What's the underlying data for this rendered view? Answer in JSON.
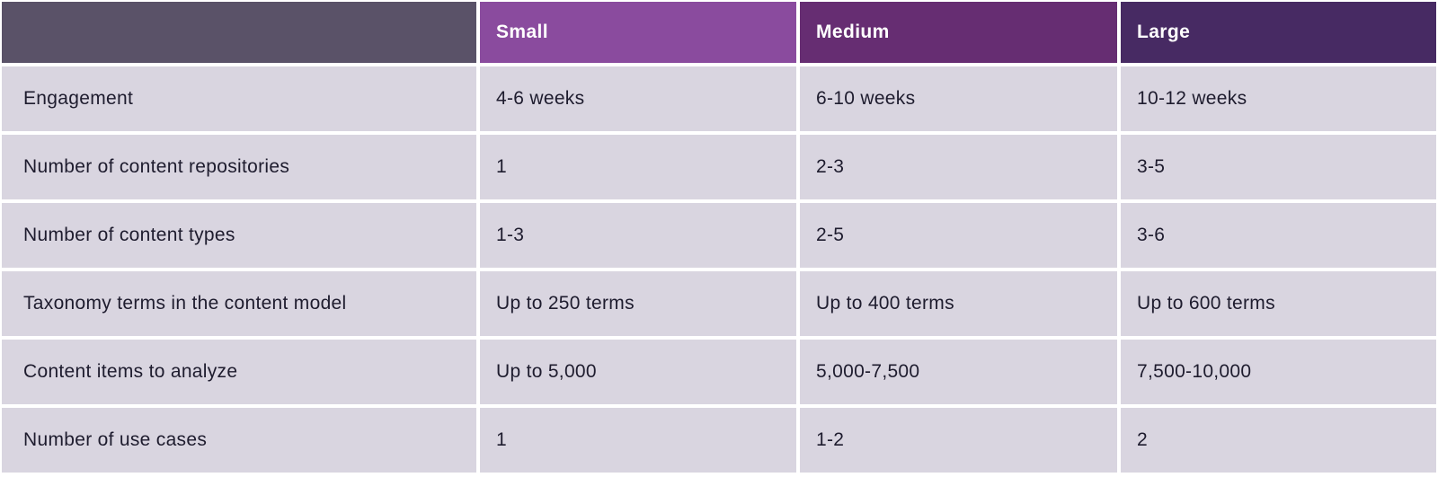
{
  "table": {
    "header": {
      "corner_label": "",
      "columns": [
        {
          "key": "small",
          "label": "Small",
          "color": "#8a4b9e"
        },
        {
          "key": "medium",
          "label": "Medium",
          "color": "#662d72"
        },
        {
          "key": "large",
          "label": "Large",
          "color": "#472a63"
        }
      ],
      "corner_color": "#5a5268",
      "header_text_color": "#ffffff"
    },
    "rows": [
      {
        "label": "Engagement",
        "small": "4-6 weeks",
        "medium": "6-10 weeks",
        "large": "10-12 weeks"
      },
      {
        "label": "Number of content repositories",
        "small": "1",
        "medium": "2-3",
        "large": "3-5"
      },
      {
        "label": "Number of content types",
        "small": "1-3",
        "medium": "2-5",
        "large": "3-6"
      },
      {
        "label": "Taxonomy terms in the content model",
        "small": "Up to 250 terms",
        "medium": "Up to 400 terms",
        "large": "Up to 600 terms"
      },
      {
        "label": "Content items to analyze",
        "small": "Up to 5,000",
        "medium": "5,000-7,500",
        "large": "7,500-10,000"
      },
      {
        "label": "Number of use cases",
        "small": "1",
        "medium": "1-2",
        "large": "2"
      }
    ],
    "colors": {
      "row_background": "#d9d5e0",
      "body_text": "#1e1c2e",
      "gap": "#ffffff"
    }
  },
  "chart_data": {
    "type": "table",
    "title": "",
    "columns": [
      "",
      "Small",
      "Medium",
      "Large"
    ],
    "rows": [
      [
        "Engagement",
        "4-6 weeks",
        "6-10 weeks",
        "10-12 weeks"
      ],
      [
        "Number of content repositories",
        "1",
        "2-3",
        "3-5"
      ],
      [
        "Number of content types",
        "1-3",
        "2-5",
        "3-6"
      ],
      [
        "Taxonomy terms in the content model",
        "Up to 250 terms",
        "Up to 400 terms",
        "Up to 600 terms"
      ],
      [
        "Content items to analyze",
        "Up to 5,000",
        "5,000-7,500",
        "7,500-10,000"
      ],
      [
        "Number of use cases",
        "1",
        "1-2",
        "2"
      ]
    ]
  }
}
